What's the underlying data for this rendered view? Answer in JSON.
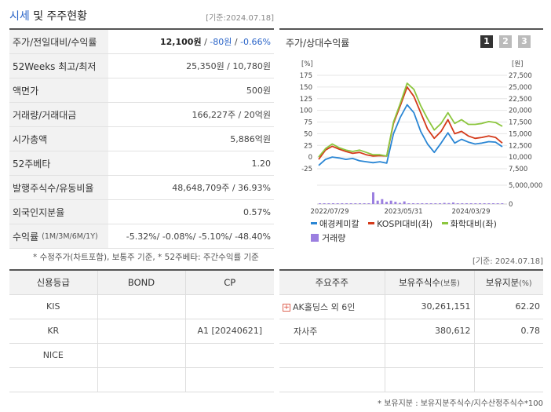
{
  "header": {
    "title_prefix": "시세",
    "title_suffix": " 및 주주현황",
    "date": "[기준:2024.07.18]"
  },
  "market": {
    "rows": [
      {
        "label": "주가/전일대비/수익률",
        "value_main": "12,100원",
        "value_sep1": " / ",
        "value_change": "-80원",
        "value_sep2": " / ",
        "value_rate": "-0.66%"
      },
      {
        "label": "52Weeks 최고/최저",
        "value": "25,350원 / 10,780원"
      },
      {
        "label": "액면가",
        "value": "500원"
      },
      {
        "label": "거래량/거래대금",
        "value": "166,227주 / 20억원"
      },
      {
        "label": "시가총액",
        "value": "5,886억원"
      },
      {
        "label": "52주베타",
        "value": "1.20"
      },
      {
        "label": "발행주식수/유동비율",
        "value": "48,648,709주 / 36.93%"
      },
      {
        "label": "외국인지분율",
        "value": "0.57%"
      },
      {
        "label": "수익률",
        "label_sub": "(1M/3M/6M/1Y)",
        "value": "-5.32%/ -0.08%/ -5.10%/ -48.40%"
      }
    ],
    "note": "* 수정주가(차트포함), 보통주 기준, * 52주베타: 주간수익률 기준"
  },
  "chart": {
    "title": "주가/상대수익률",
    "pages": [
      "1",
      "2",
      "3"
    ],
    "left_unit": "[%]",
    "right_unit": "[원]",
    "legend": {
      "series1": "애경케미칼",
      "series2": "KOSPI대비(좌)",
      "series3": "화학대비(좌)",
      "volume": "거래량"
    },
    "colors": {
      "series1": "#2a86d4",
      "series2": "#d43a1a",
      "series3": "#8cc63e",
      "volume": "#9b7fe0"
    }
  },
  "chart_data": {
    "type": "line",
    "x_ticks": [
      "2022/07/29",
      "2023/05/31",
      "2024/03/29"
    ],
    "left_ticks": [
      "175",
      "150",
      "125",
      "100",
      "75",
      "50",
      "25",
      "0",
      "-25"
    ],
    "left_ylim": [
      -25,
      175
    ],
    "right_ticks": [
      "27,500",
      "25,000",
      "22,500",
      "20,000",
      "17,500",
      "15,000",
      "12,500",
      "10,000",
      "7,500"
    ],
    "right_ylim": [
      7500,
      27500
    ],
    "volume_ticks": [
      "5,000,000",
      "0"
    ],
    "volume_ylim": [
      0,
      5000000
    ],
    "series": [
      {
        "name": "애경케미칼",
        "values": [
          -18,
          -5,
          0,
          -2,
          -5,
          -3,
          -8,
          -10,
          -12,
          -10,
          -13,
          50,
          85,
          112,
          95,
          55,
          28,
          10,
          30,
          52,
          30,
          38,
          32,
          28,
          30,
          33,
          32,
          22
        ]
      },
      {
        "name": "KOSPI대비(좌)",
        "values": [
          -5,
          15,
          23,
          17,
          12,
          8,
          10,
          5,
          2,
          3,
          2,
          72,
          110,
          150,
          130,
          95,
          60,
          40,
          55,
          80,
          50,
          55,
          45,
          40,
          42,
          45,
          42,
          30
        ]
      },
      {
        "name": "화학대비(좌)",
        "values": [
          0,
          18,
          28,
          20,
          15,
          12,
          15,
          10,
          5,
          5,
          2,
          75,
          115,
          158,
          145,
          110,
          82,
          58,
          72,
          95,
          72,
          80,
          70,
          70,
          72,
          76,
          74,
          66
        ]
      }
    ],
    "volume": [
      0.1,
      0.05,
      0.05,
      0.03,
      0.02,
      0.02,
      0.02,
      0.02,
      0.02,
      0.02,
      0.02,
      0.1,
      0.05,
      0.05,
      0.05,
      0.1,
      0.15,
      0.05,
      0.2,
      0.1,
      0.3,
      0.25,
      0.4,
      0.2,
      0.2,
      0.15,
      0.2,
      0.1,
      0.05,
      0.15,
      0.05,
      0.05,
      0.05,
      0.05
    ],
    "volume_spike": [
      3.1,
      0.9,
      1.3,
      0.6,
      0.9,
      0.6,
      0.3,
      0.7
    ]
  },
  "credit": {
    "headers": [
      "신용등급",
      "BOND",
      "CP"
    ],
    "rows": [
      [
        "KIS",
        "",
        ""
      ],
      [
        "KR",
        "",
        "A1  [20240621]"
      ],
      [
        "NICE",
        "",
        ""
      ],
      [
        "",
        "",
        ""
      ]
    ]
  },
  "holders": {
    "date": "[기준: 2024.07.18]",
    "headers": {
      "h1": "주요주주",
      "h2": "보유주식수",
      "h2_sub": "(보통)",
      "h3": "보유지분",
      "h3_sub": "(%)"
    },
    "rows": [
      {
        "name": "AK홀딩스 외 6인",
        "shares": "30,261,151",
        "pct": "62.20",
        "expand": "+"
      },
      {
        "name": "자사주",
        "shares": "380,612",
        "pct": "0.78"
      },
      {
        "name": "",
        "shares": "",
        "pct": ""
      },
      {
        "name": "",
        "shares": "",
        "pct": ""
      }
    ],
    "note": "* 보유지분 : 보유지분주식수/지수산정주식수*100"
  }
}
